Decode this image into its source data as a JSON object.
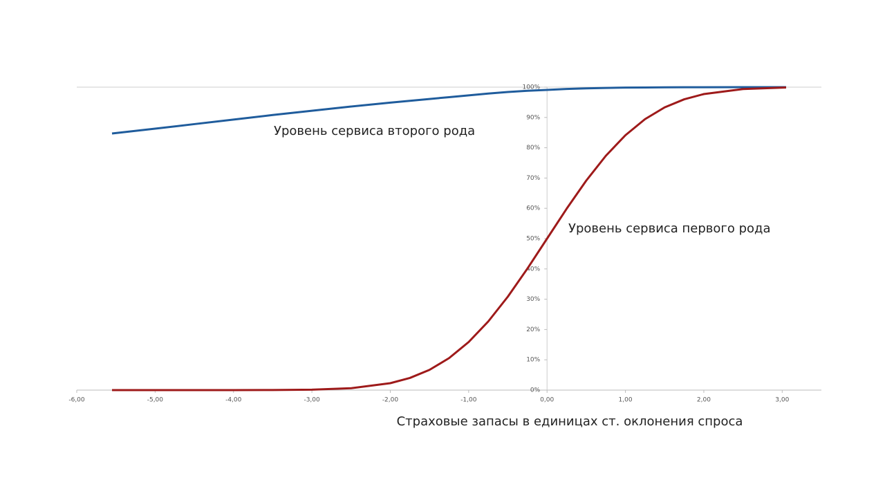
{
  "chart_data": {
    "type": "line",
    "x_label": "Страховые запасы в единицах ст. оклонения спроса",
    "x": [
      -5.55,
      -5,
      -4.5,
      -4,
      -3.5,
      -3,
      -2.5,
      -2,
      -1.75,
      -1.5,
      -1.25,
      -1,
      -0.75,
      -0.5,
      -0.25,
      0,
      0.25,
      0.5,
      0.75,
      1,
      1.25,
      1.5,
      1.75,
      2,
      2.5,
      3.05
    ],
    "series": [
      {
        "name": "Уровень сервиса второго рода",
        "color": "#1f5c9c",
        "values": [
          84.7,
          86.3,
          87.8,
          89.3,
          90.8,
          92.2,
          93.6,
          94.9,
          95.5,
          96.1,
          96.7,
          97.3,
          97.9,
          98.4,
          98.8,
          99.1,
          99.4,
          99.6,
          99.75,
          99.85,
          99.9,
          99.95,
          99.97,
          99.98,
          100,
          100
        ]
      },
      {
        "name": "Уровень сервиса первого рода",
        "color": "#9e1a1a",
        "values": [
          0,
          0,
          0,
          0,
          0.02,
          0.13,
          0.62,
          2.28,
          4.01,
          6.68,
          10.56,
          15.87,
          22.66,
          30.85,
          40.13,
          50,
          59.87,
          69.15,
          77.34,
          84.13,
          89.44,
          93.32,
          95.99,
          97.72,
          99.38,
          99.89
        ]
      }
    ],
    "xlim": [
      -6,
      3.5
    ],
    "xticks": [
      {
        "value": -6,
        "label": "-6,00"
      },
      {
        "value": -5,
        "label": "-5,00"
      },
      {
        "value": -4,
        "label": "-4,00"
      },
      {
        "value": -3,
        "label": "-3,00"
      },
      {
        "value": -2,
        "label": "-2,00"
      },
      {
        "value": -1,
        "label": "-1,00"
      },
      {
        "value": 0,
        "label": "0,00"
      },
      {
        "value": 1,
        "label": "1,00"
      },
      {
        "value": 2,
        "label": "2,00"
      },
      {
        "value": 3,
        "label": "3,00"
      }
    ],
    "ylim": [
      0,
      100
    ],
    "yticks": [
      {
        "value": 0,
        "label": "0%"
      },
      {
        "value": 10,
        "label": "10%"
      },
      {
        "value": 20,
        "label": "20%"
      },
      {
        "value": 30,
        "label": "30%"
      },
      {
        "value": 40,
        "label": "40%"
      },
      {
        "value": 50,
        "label": "50%"
      },
      {
        "value": 60,
        "label": "60%"
      },
      {
        "value": 70,
        "label": "70%"
      },
      {
        "value": 80,
        "label": "80%"
      },
      {
        "value": 90,
        "label": "90%"
      },
      {
        "value": 100,
        "label": "100%"
      }
    ]
  }
}
